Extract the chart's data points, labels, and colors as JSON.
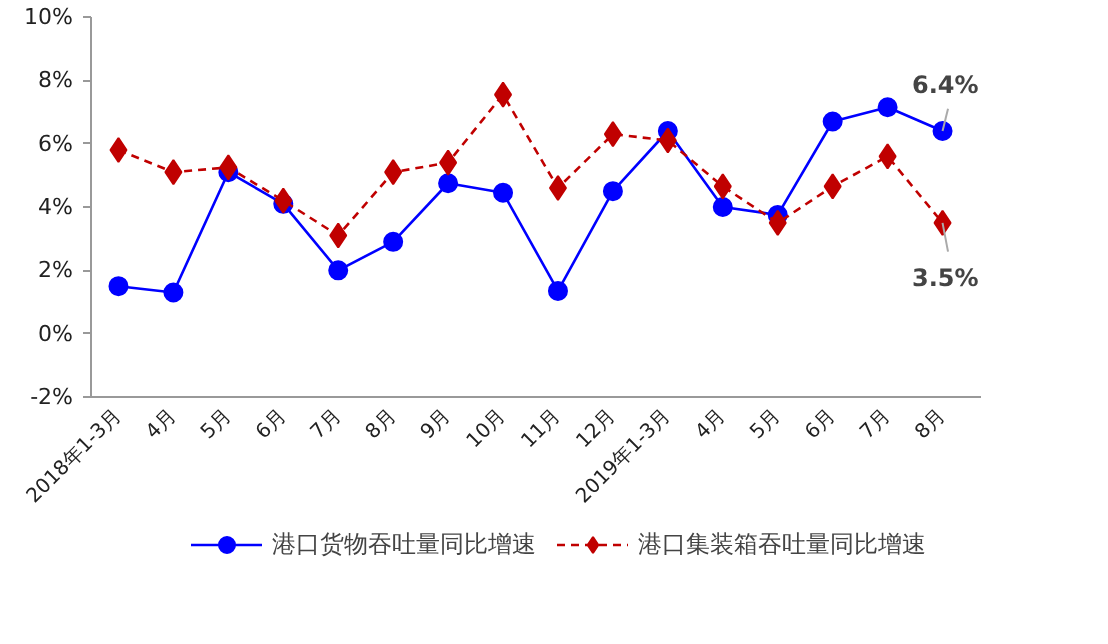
{
  "chart_data": {
    "type": "line",
    "categories": [
      "2018年1-3月",
      "4月",
      "5月",
      "6月",
      "7月",
      "8月",
      "9月",
      "10月",
      "11月",
      "12月",
      "2019年1-3月",
      "4月",
      "5月",
      "6月",
      "7月",
      "8月"
    ],
    "series": [
      {
        "name": "港口货物吞吐量同比增速",
        "color": "#0000ff",
        "marker": "circle",
        "line_style": "solid",
        "values": [
          1.5,
          1.3,
          5.1,
          4.1,
          2.0,
          2.9,
          4.75,
          4.45,
          1.35,
          4.5,
          6.4,
          4.0,
          3.75,
          6.7,
          7.15,
          6.4
        ]
      },
      {
        "name": "港口集装箱吞吐量同比增速",
        "color": "#c00000",
        "marker": "diamond",
        "line_style": "dashed",
        "values": [
          5.8,
          5.1,
          5.25,
          4.2,
          3.1,
          5.1,
          5.4,
          7.55,
          4.6,
          6.3,
          6.1,
          4.65,
          3.5,
          4.65,
          5.6,
          3.5
        ]
      }
    ],
    "ylim": [
      -2,
      10
    ],
    "yticks": [
      {
        "value": -2,
        "label": "-2%"
      },
      {
        "value": 0,
        "label": "0%"
      },
      {
        "value": 2,
        "label": "2%"
      },
      {
        "value": 4,
        "label": "4%"
      },
      {
        "value": 6,
        "label": "6%"
      },
      {
        "value": 8,
        "label": "8%"
      },
      {
        "value": 10,
        "label": "10%"
      }
    ],
    "annotations": [
      "6.4%",
      "3.5%"
    ],
    "grid": false,
    "legend": "bottom"
  }
}
